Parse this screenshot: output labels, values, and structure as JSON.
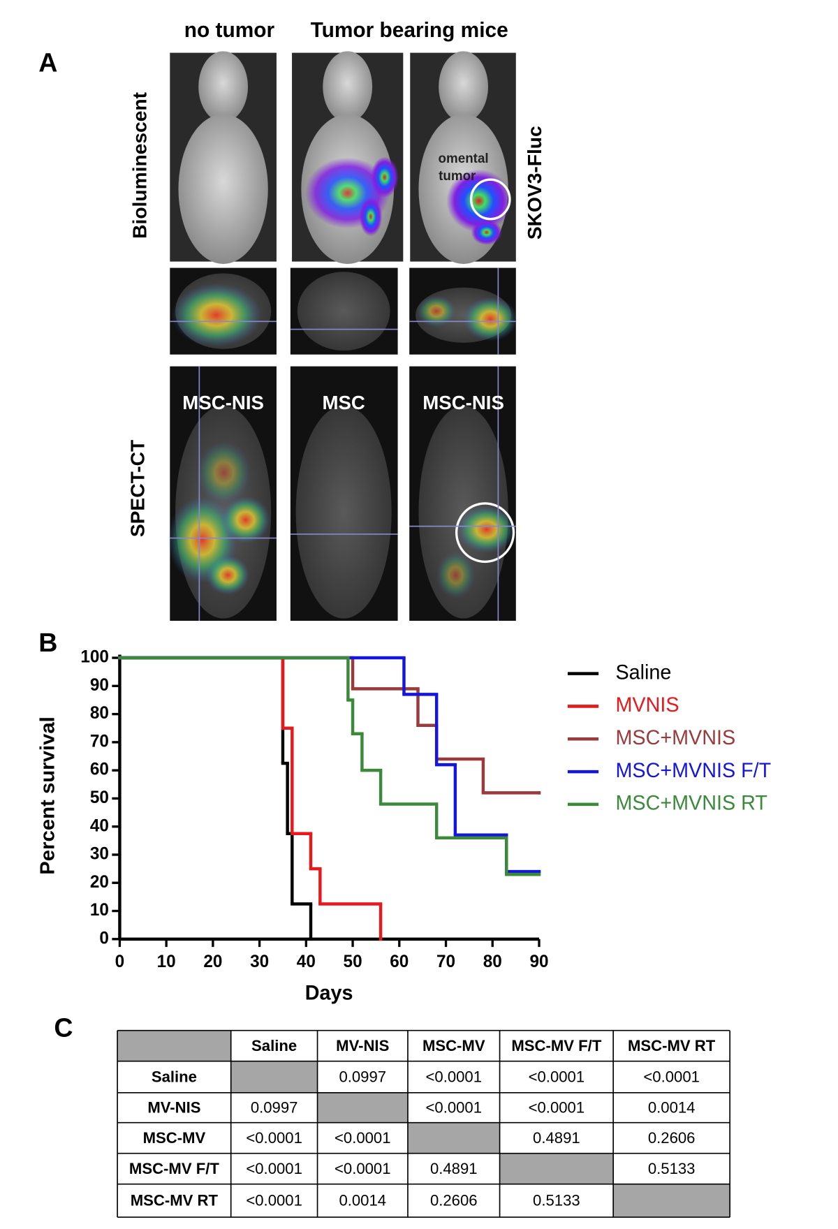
{
  "panel_labels": [
    "A",
    "B",
    "C"
  ],
  "panel_a": {
    "column_headers": [
      "no tumor",
      "Tumor bearing mice"
    ],
    "row_labels": [
      "Bioluminescent",
      "SPECT-CT"
    ],
    "cell_line": "SKOV3-Fluc",
    "annotation": [
      "omental",
      "tumor"
    ],
    "spect_labels": [
      "MSC-NIS",
      "MSC",
      "MSC-NIS"
    ]
  },
  "chart_data": {
    "type": "line",
    "step": true,
    "xlabel": "Days",
    "ylabel": "Percent survival",
    "xlim": [
      0,
      90
    ],
    "xticks": [
      0,
      10,
      20,
      30,
      40,
      50,
      60,
      70,
      80,
      90
    ],
    "ylim": [
      0,
      100
    ],
    "yticks": [
      0,
      10,
      20,
      30,
      40,
      50,
      60,
      70,
      80,
      90,
      100
    ],
    "legend": "right",
    "series": [
      {
        "name": "Saline",
        "color": "#000000",
        "x": [
          0,
          35,
          36,
          37,
          41
        ],
        "values": [
          100,
          62.5,
          37.5,
          12.5,
          0
        ]
      },
      {
        "name": "MVNIS",
        "color": "#e8191c",
        "x": [
          0,
          35,
          37,
          41,
          43,
          56
        ],
        "values": [
          100,
          75,
          37.5,
          25,
          12.5,
          0
        ]
      },
      {
        "name": "MSC+MVNIS",
        "color": "#9b3a3a",
        "x": [
          0,
          50,
          64,
          68,
          78,
          90
        ],
        "values": [
          100,
          89,
          76,
          64,
          52,
          52
        ]
      },
      {
        "name": "MSC+MVNIS F/T",
        "color": "#1515e0",
        "x": [
          0,
          61,
          68,
          72,
          83,
          90
        ],
        "values": [
          100,
          87,
          62,
          37,
          24,
          24
        ]
      },
      {
        "name": "MSC+MVNIS RT",
        "color": "#3a8a3a",
        "x": [
          0,
          49,
          50,
          52,
          56,
          68,
          83,
          90
        ],
        "values": [
          100,
          85,
          73,
          60,
          48,
          36,
          23,
          23
        ]
      }
    ]
  },
  "table": {
    "columns": [
      "Saline",
      "MV-NIS",
      "MSC-MV",
      "MSC-MV F/T",
      "MSC-MV RT"
    ],
    "rows": [
      {
        "label": "Saline",
        "cells": [
          null,
          "0.0997",
          "<0.0001",
          "<0.0001",
          "<0.0001"
        ]
      },
      {
        "label": "MV-NIS",
        "cells": [
          "0.0997",
          null,
          "<0.0001",
          "<0.0001",
          "0.0014"
        ]
      },
      {
        "label": "MSC-MV",
        "cells": [
          "<0.0001",
          "<0.0001",
          null,
          "0.4891",
          "0.2606"
        ]
      },
      {
        "label": "MSC-MV F/T",
        "cells": [
          "<0.0001",
          "<0.0001",
          "0.4891",
          null,
          "0.5133"
        ]
      },
      {
        "label": "MSC-MV RT",
        "cells": [
          "<0.0001",
          "0.0014",
          "0.2606",
          "0.5133",
          null
        ]
      }
    ]
  }
}
